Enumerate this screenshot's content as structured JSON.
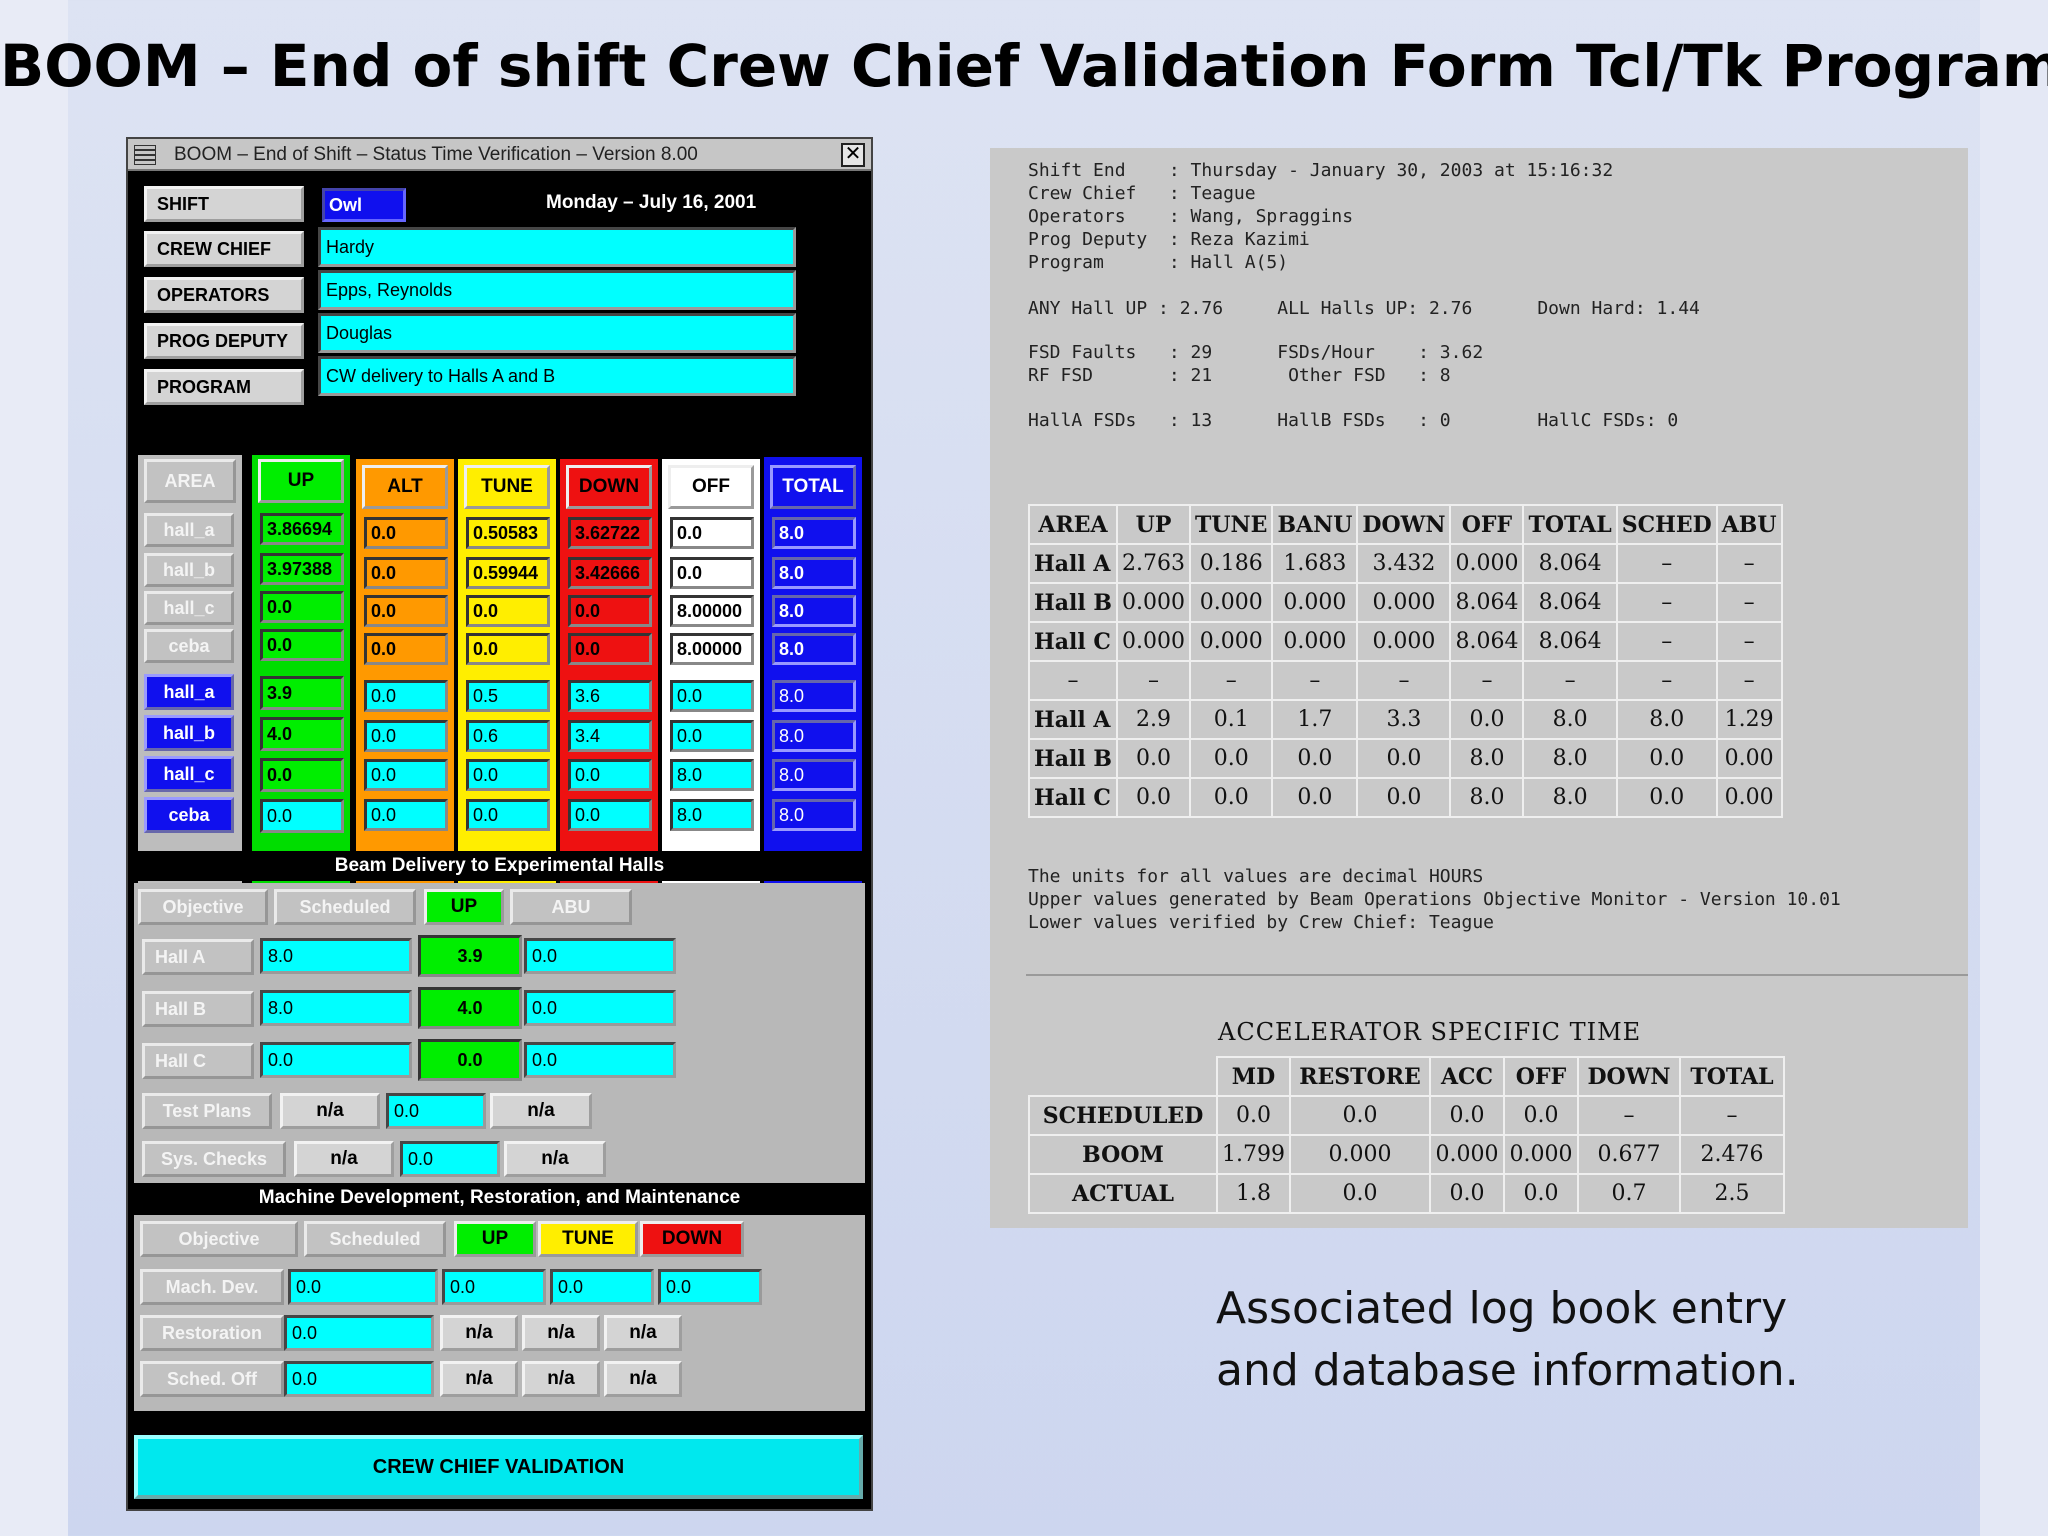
{
  "slide": {
    "title": "BOOM – End of shift Crew Chief Validation Form Tcl/Tk Program",
    "caption_line1": "Associated log book entry",
    "caption_line2": "and database information."
  },
  "window": {
    "title": "BOOM – End of Shift – Status Time Verification – Version 8.00",
    "close": "✕"
  },
  "info": {
    "shift_label": "SHIFT",
    "shift_value": "Owl",
    "date": "Monday  –  July 16, 2001",
    "crew_chief_label": "CREW CHIEF",
    "crew_chief_value": "Hardy",
    "operators_label": "OPERATORS",
    "operators_value": "Epps, Reynolds",
    "prog_deputy_label": "PROG DEPUTY",
    "prog_deputy_value": "Douglas",
    "program_label": "PROGRAM",
    "program_value": "CW delivery to Halls A and B"
  },
  "status": {
    "headers": {
      "area": "AREA",
      "up": "UP",
      "alt": "ALT",
      "tune": "TUNE",
      "down": "DOWN",
      "off": "OFF",
      "total": "TOTAL"
    },
    "upper_areas": [
      "hall_a",
      "hall_b",
      "hall_c",
      "ceba"
    ],
    "upper_up": [
      "3.86694",
      "3.97388",
      "0.0",
      "0.0"
    ],
    "upper_alt": [
      "0.0",
      "0.0",
      "0.0",
      "0.0"
    ],
    "upper_tune": [
      "0.50583",
      "0.59944",
      "0.0",
      "0.0"
    ],
    "upper_down": [
      "3.62722",
      "3.42666",
      "0.0",
      "0.0"
    ],
    "upper_off": [
      "0.0",
      "0.0",
      "8.00000",
      "8.00000"
    ],
    "upper_total": [
      "8.0",
      "8.0",
      "8.0",
      "8.0"
    ],
    "lower_areas": [
      "hall_a",
      "hall_b",
      "hall_c",
      "ceba"
    ],
    "lower_up": [
      "3.9",
      "4.0",
      "0.0",
      "0.0"
    ],
    "lower_alt": [
      "0.0",
      "0.0",
      "0.0",
      "0.0"
    ],
    "lower_tune": [
      "0.5",
      "0.6",
      "0.0",
      "0.0"
    ],
    "lower_down": [
      "3.6",
      "3.4",
      "0.0",
      "0.0"
    ],
    "lower_off": [
      "0.0",
      "0.0",
      "8.0",
      "8.0"
    ],
    "lower_total": [
      "8.0",
      "8.0",
      "8.0",
      "8.0"
    ]
  },
  "beam": {
    "title": "Beam Delivery to Experimental Halls",
    "headers": {
      "objective": "Objective",
      "scheduled": "Scheduled",
      "up": "UP",
      "abu": "ABU"
    },
    "rows": [
      {
        "label": "Hall  A",
        "scheduled": "8.0",
        "up": "3.9",
        "abu": "0.0"
      },
      {
        "label": "Hall  B",
        "scheduled": "8.0",
        "up": "4.0",
        "abu": "0.0"
      },
      {
        "label": "Hall  C",
        "scheduled": "0.0",
        "up": "0.0",
        "abu": "0.0"
      }
    ],
    "test_plans": {
      "label": "Test  Plans",
      "a": "n/a",
      "b": "0.0",
      "c": "n/a"
    },
    "sys_checks": {
      "label": "Sys. Checks",
      "a": "n/a",
      "b": "0.0",
      "c": "n/a"
    }
  },
  "mdrm": {
    "title": "Machine Development, Restoration, and Maintenance",
    "headers": {
      "objective": "Objective",
      "scheduled": "Scheduled",
      "up": "UP",
      "tune": "TUNE",
      "down": "DOWN"
    },
    "mach_dev": {
      "label": "Mach. Dev.",
      "sched": "0.0",
      "up": "0.0",
      "tune": "0.0",
      "down": "0.0"
    },
    "restoration": {
      "label": "Restoration",
      "sched": "0.0",
      "up": "n/a",
      "tune": "n/a",
      "down": "n/a"
    },
    "sched_off": {
      "label": "Sched. Off",
      "sched": "0.0",
      "up": "n/a",
      "tune": "n/a",
      "down": "n/a"
    }
  },
  "validate_button": "CREW CHIEF VALIDATION",
  "log": {
    "lines_top": [
      "Shift End    : Thursday - January 30, 2003 at 15:16:32",
      "Crew Chief   : Teague",
      "Operators    : Wang, Spraggins",
      "Prog Deputy  : Reza Kazimi",
      "Program      : Hall A(5)"
    ],
    "halls_line": "ANY Hall UP : 2.76     ALL Halls UP: 2.76      Down Hard: 1.44",
    "fsd_lines": [
      "FSD Faults   : 29      FSDs/Hour    : 3.62",
      "RF FSD       : 21       Other FSD   : 8"
    ],
    "hallfsd_line": "HallA FSDs   : 13      HallB FSDs   : 0        HallC FSDs: 0",
    "units_lines": [
      "The units for all values are decimal HOURS",
      "Upper values generated by Beam Operations Objective Monitor - Version 10.01",
      "Lower values verified by Crew Chief: Teague"
    ],
    "table_headers": [
      "AREA",
      "UP",
      "TUNE",
      "BANU",
      "DOWN",
      "OFF",
      "TOTAL",
      "SCHED",
      "ABU"
    ],
    "table_rows": [
      [
        "Hall A",
        "2.763",
        "0.186",
        "1.683",
        "3.432",
        "0.000",
        "8.064",
        "–",
        "–"
      ],
      [
        "Hall B",
        "0.000",
        "0.000",
        "0.000",
        "0.000",
        "8.064",
        "8.064",
        "–",
        "–"
      ],
      [
        "Hall C",
        "0.000",
        "0.000",
        "0.000",
        "0.000",
        "8.064",
        "8.064",
        "–",
        "–"
      ],
      [
        "–",
        "–",
        "–",
        "–",
        "–",
        "–",
        "–",
        "–",
        "–"
      ],
      [
        "Hall A",
        "2.9",
        "0.1",
        "1.7",
        "3.3",
        "0.0",
        "8.0",
        "8.0",
        "1.29"
      ],
      [
        "Hall B",
        "0.0",
        "0.0",
        "0.0",
        "0.0",
        "8.0",
        "8.0",
        "0.0",
        "0.00"
      ],
      [
        "Hall C",
        "0.0",
        "0.0",
        "0.0",
        "0.0",
        "8.0",
        "8.0",
        "0.0",
        "0.00"
      ]
    ],
    "acc_title": "ACCELERATOR SPECIFIC TIME",
    "acc_headers": [
      "",
      "MD",
      "RESTORE",
      "ACC",
      "OFF",
      "DOWN",
      "TOTAL"
    ],
    "acc_rows": [
      [
        "SCHEDULED",
        "0.0",
        "0.0",
        "0.0",
        "0.0",
        "–",
        "–"
      ],
      [
        "BOOM",
        "1.799",
        "0.000",
        "0.000",
        "0.000",
        "0.677",
        "2.476"
      ],
      [
        "ACTUAL",
        "1.8",
        "0.0",
        "0.0",
        "0.0",
        "0.7",
        "2.5"
      ]
    ]
  },
  "colors": {
    "up_green": "#00ee00",
    "alt_orange": "#ff9900",
    "tune_yellow": "#ffee00",
    "down_red": "#ee1111",
    "total_blue": "#1010ee",
    "field_cyan": "#00ffff"
  }
}
